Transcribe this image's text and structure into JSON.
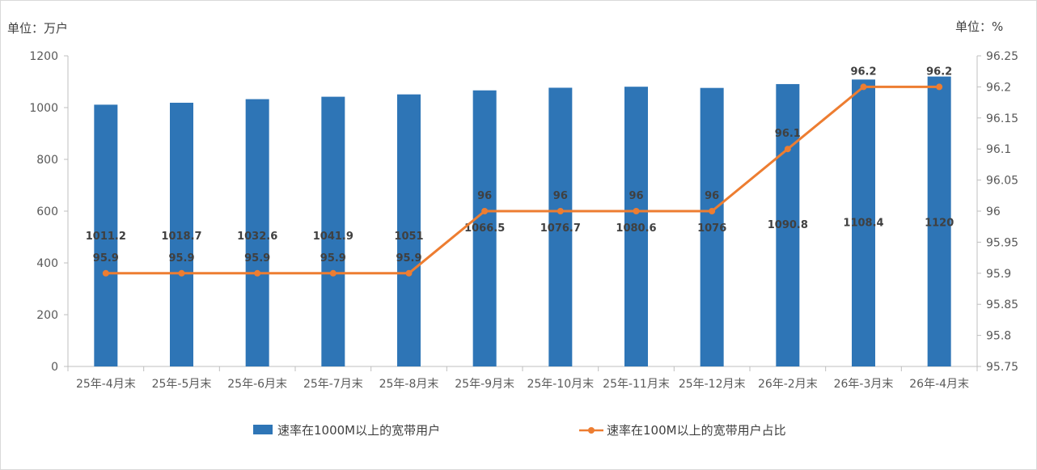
{
  "chart_data": {
    "type": "bar+line",
    "categories": [
      "25年-4月末",
      "25年-5月末",
      "25年-6月末",
      "25年-7月末",
      "25年-8月末",
      "25年-9月末",
      "25年-10月末",
      "25年-11月末",
      "25年-12月末",
      "26年-2月末",
      "26年-3月末",
      "26年-4月末"
    ],
    "left_unit": "单位：万户",
    "right_unit": "单位：%",
    "y_left": {
      "min": 0,
      "max": 1200,
      "step": 200,
      "ticks": [
        "0",
        "200",
        "400",
        "600",
        "800",
        "1000",
        "1200"
      ]
    },
    "y_right": {
      "min": 95.75,
      "max": 96.25,
      "step": 0.05,
      "ticks": [
        "95.75",
        "95.8",
        "95.85",
        "95.9",
        "95.95",
        "96",
        "96.05",
        "96.1",
        "96.15",
        "96.2",
        "96.25"
      ]
    },
    "series": [
      {
        "name": "速率在1000M以上的宽带用户",
        "type": "bar",
        "axis": "left",
        "color": "#2e75b6",
        "values": [
          1011.2,
          1018.7,
          1032.6,
          1041.9,
          1051,
          1066.5,
          1076.7,
          1080.6,
          1076,
          1090.8,
          1108.4,
          1120
        ],
        "labels": [
          "1011.2",
          "1018.7",
          "1032.6",
          "1041.9",
          "1051",
          "1066.5",
          "1076.7",
          "1080.6",
          "1076",
          "1090.8",
          "1108.4",
          "1120"
        ]
      },
      {
        "name": "速率在100M以上的宽带用户占比",
        "type": "line",
        "axis": "right",
        "color": "#ed7d31",
        "values": [
          95.9,
          95.9,
          95.9,
          95.9,
          95.9,
          96,
          96,
          96,
          96,
          96.1,
          96.2,
          96.2
        ],
        "labels": [
          "95.9",
          "95.9",
          "95.9",
          "95.9",
          "95.9",
          "96",
          "96",
          "96",
          "96",
          "96.1",
          "96.2",
          "96.2"
        ]
      }
    ],
    "legend": "bottom",
    "grid": false
  }
}
